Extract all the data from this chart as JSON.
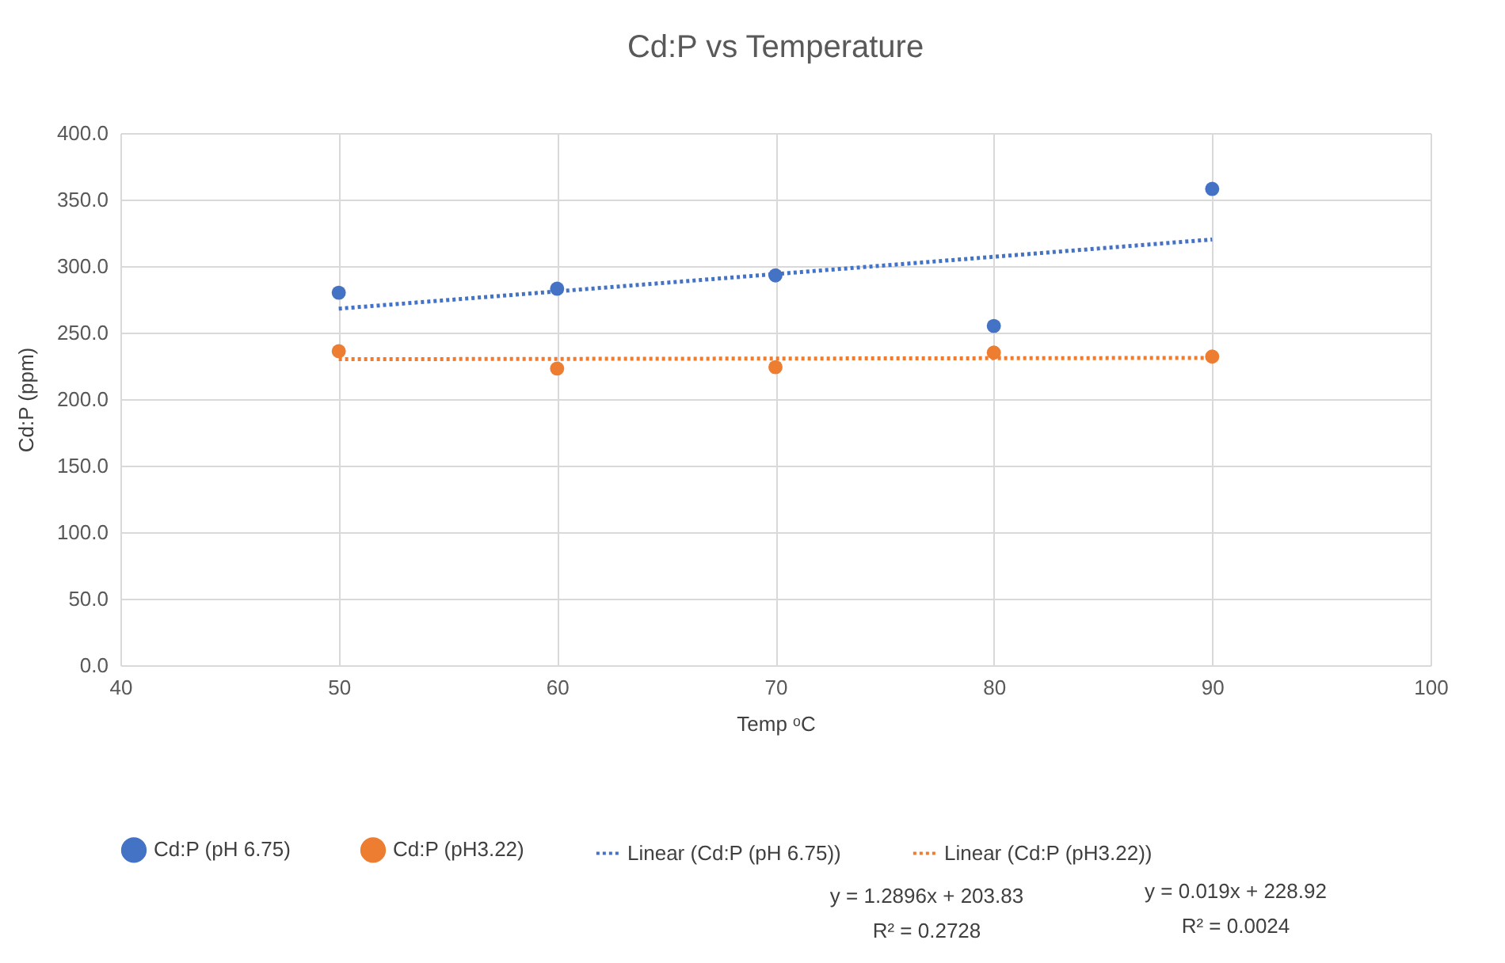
{
  "chart_data": {
    "type": "scatter",
    "title": "Cd:P vs Temperature",
    "xlabel": "Temp ᵒC",
    "ylabel": "Cd:P (ppm)",
    "series": [
      {
        "name": "Cd:P (pH 6.75)",
        "color": "#4472c4",
        "x": [
          50,
          60,
          70,
          80,
          90
        ],
        "values": [
          280,
          283,
          293,
          255,
          358
        ]
      },
      {
        "name": "Cd:P (pH3.22)",
        "color": "#ed7d31",
        "x": [
          50,
          60,
          70,
          80,
          90
        ],
        "values": [
          236,
          223,
          224,
          235,
          232
        ]
      },
      {
        "name": "Linear (Cd:P (pH 6.75))",
        "type": "line",
        "line_style": "dotted",
        "marker": "none",
        "color": "#4472c4",
        "x": [
          50,
          90
        ],
        "values": [
          268,
          320
        ]
      },
      {
        "name": "Linear (Cd:P (pH3.22))",
        "type": "line",
        "line_style": "dotted",
        "marker": "none",
        "color": "#ed7d31",
        "x": [
          50,
          90
        ],
        "values": [
          230,
          231
        ]
      }
    ],
    "xlim": [
      40,
      100
    ],
    "xticks": [
      40,
      50,
      60,
      70,
      80,
      90,
      100
    ],
    "ylim": [
      0,
      400
    ],
    "yticks": [
      {
        "value": 0,
        "label": "0.0"
      },
      {
        "value": 50,
        "label": "50.0"
      },
      {
        "value": 100,
        "label": "100.0"
      },
      {
        "value": 150,
        "label": "150.0"
      },
      {
        "value": 200,
        "label": "200.0"
      },
      {
        "value": 250,
        "label": "250.0"
      },
      {
        "value": 300,
        "label": "300.0"
      },
      {
        "value": 350,
        "label": "350.0"
      },
      {
        "value": 400,
        "label": "400.0"
      }
    ],
    "grid": true,
    "legend": "bottom",
    "marker": "circle",
    "annotations": [
      "y = 1.2896x + 203.83",
      "R² = 0.2728",
      "y = 0.019x + 228.92",
      "R² = 0.0024"
    ]
  }
}
